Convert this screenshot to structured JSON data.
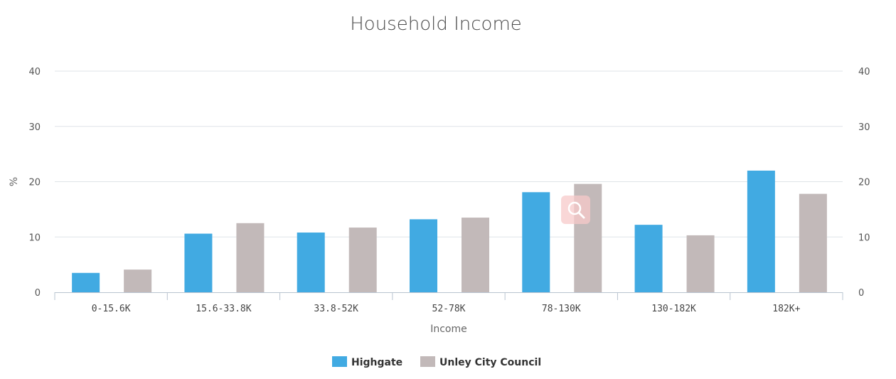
{
  "chart_data": {
    "type": "bar",
    "title": "Household Income",
    "xlabel": "Income",
    "ylabel": "%",
    "categories": [
      "0-15.6K",
      "15.6-33.8K",
      "33.8-52K",
      "52-78K",
      "78-130K",
      "130-182K",
      "182K+"
    ],
    "series": [
      {
        "name": "Highgate",
        "color": "#41aae2",
        "values": [
          3.5,
          10.6,
          10.8,
          13.2,
          18.1,
          12.2,
          22.0
        ]
      },
      {
        "name": "Unley City Council",
        "color": "#c2b9b9",
        "values": [
          4.1,
          12.5,
          11.7,
          13.5,
          19.6,
          10.3,
          17.8
        ]
      }
    ],
    "ylim": [
      0,
      40
    ],
    "yticks": [
      0,
      10,
      20,
      30,
      40
    ],
    "secondary_y_axis": true,
    "grid": true,
    "legend_position": "bottom-center"
  }
}
